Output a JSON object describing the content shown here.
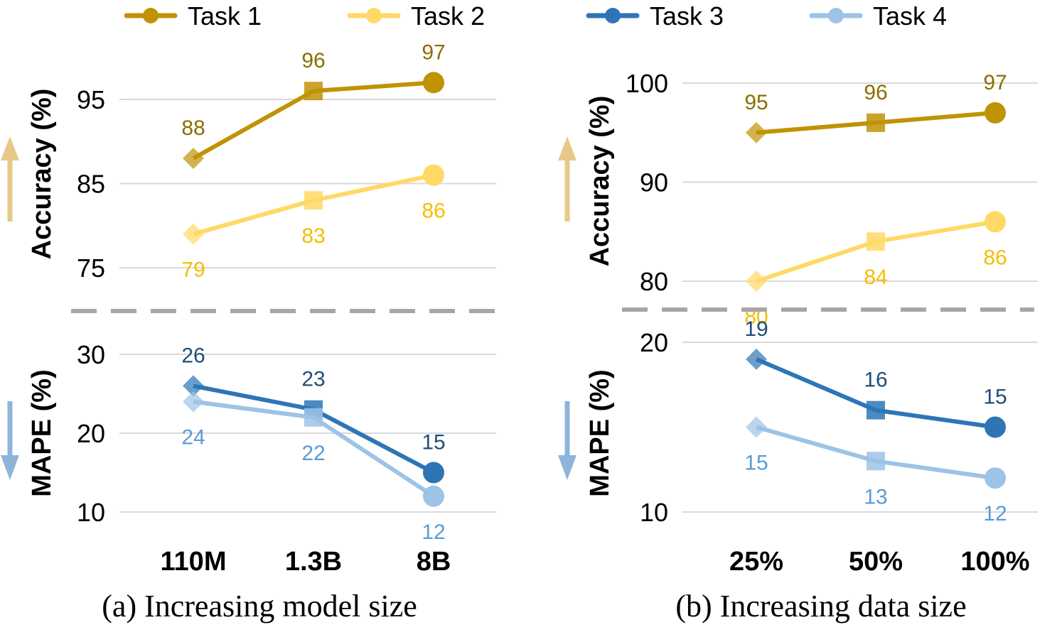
{
  "legend": [
    {
      "label": "Task 1",
      "color": "#C09305",
      "marker": "circle"
    },
    {
      "label": "Task 2",
      "color": "#FFD966",
      "marker": "circle"
    },
    {
      "label": "Task 3",
      "color": "#2E75B6",
      "marker": "circle"
    },
    {
      "label": "Task 4",
      "color": "#9DC3E6",
      "marker": "circle"
    }
  ],
  "colors": {
    "task1": "#C09305",
    "task1_label": "#8B6D00",
    "task2": "#FFD966",
    "task2_label": "#F5BE00",
    "task3": "#2E75B6",
    "task3_label": "#1F4E79",
    "task4": "#9DC3E6",
    "task4_label": "#5B9BD5",
    "grid": "#D9D9D9",
    "separator": "#A6A6A6",
    "arrow_up": "#E6C98A",
    "arrow_down": "#8FB4D9"
  },
  "chart_data": [
    {
      "type": "line",
      "panel": "a",
      "caption": "(a) Increasing model size",
      "categories": [
        "110M",
        "1.3B",
        "8B"
      ],
      "top": {
        "ylabel": "Accuracy (%)",
        "direction": "up",
        "ylim": [
          72,
          100
        ],
        "yticks": [
          "75",
          "85",
          "95"
        ],
        "ytick_values": [
          75,
          85,
          95
        ],
        "grid": true,
        "series": [
          {
            "name": "Task 1",
            "values": [
              88,
              96,
              97
            ],
            "labels": [
              "88",
              "96",
              "97"
            ],
            "label_pos": [
              "above",
              "above",
              "above"
            ]
          },
          {
            "name": "Task 2",
            "values": [
              79,
              83,
              86
            ],
            "labels": [
              "79",
              "83",
              "86"
            ],
            "label_pos": [
              "below",
              "below",
              "below"
            ]
          }
        ]
      },
      "bottom": {
        "ylabel": "MAPE (%)",
        "direction": "down",
        "ylim": [
          7,
          34
        ],
        "yticks": [
          "10",
          "20",
          "30"
        ],
        "ytick_values": [
          10,
          20,
          30
        ],
        "grid": true,
        "series": [
          {
            "name": "Task 3",
            "values": [
              26,
              23,
              15
            ],
            "labels": [
              "26",
              "23",
              "15"
            ],
            "label_pos": [
              "above",
              "above",
              "above"
            ]
          },
          {
            "name": "Task 4",
            "values": [
              24,
              22,
              12
            ],
            "labels": [
              "24",
              "22",
              "12"
            ],
            "label_pos": [
              "below",
              "below",
              "below"
            ]
          }
        ]
      }
    },
    {
      "type": "line",
      "panel": "b",
      "caption": "(b) Increasing data size",
      "categories": [
        "25%",
        "50%",
        "100%"
      ],
      "top": {
        "ylabel": "Accuracy (%)",
        "direction": "up",
        "ylim": [
          78,
          102
        ],
        "yticks": [
          "80",
          "90",
          "100"
        ],
        "ytick_values": [
          80,
          90,
          100
        ],
        "grid": true,
        "series": [
          {
            "name": "Task 1",
            "values": [
              95,
              96,
              97
            ],
            "labels": [
              "95",
              "96",
              "97"
            ],
            "label_pos": [
              "above",
              "above",
              "above"
            ]
          },
          {
            "name": "Task 2",
            "values": [
              80,
              84,
              86
            ],
            "labels": [
              "80",
              "84",
              "86"
            ],
            "label_pos": [
              "below",
              "below",
              "below"
            ]
          }
        ]
      },
      "bottom": {
        "ylabel": "MAPE (%)",
        "direction": "down",
        "ylim": [
          8,
          22
        ],
        "yticks": [
          "10",
          "20"
        ],
        "ytick_values": [
          10,
          20
        ],
        "grid": true,
        "series": [
          {
            "name": "Task 3",
            "values": [
              19,
              16,
              15
            ],
            "labels": [
              "19",
              "16",
              "15"
            ],
            "label_pos": [
              "above",
              "above",
              "above"
            ]
          },
          {
            "name": "Task 4",
            "values": [
              15,
              13,
              12
            ],
            "labels": [
              "15",
              "13",
              "12"
            ],
            "label_pos": [
              "below",
              "below",
              "below"
            ]
          }
        ]
      }
    }
  ]
}
